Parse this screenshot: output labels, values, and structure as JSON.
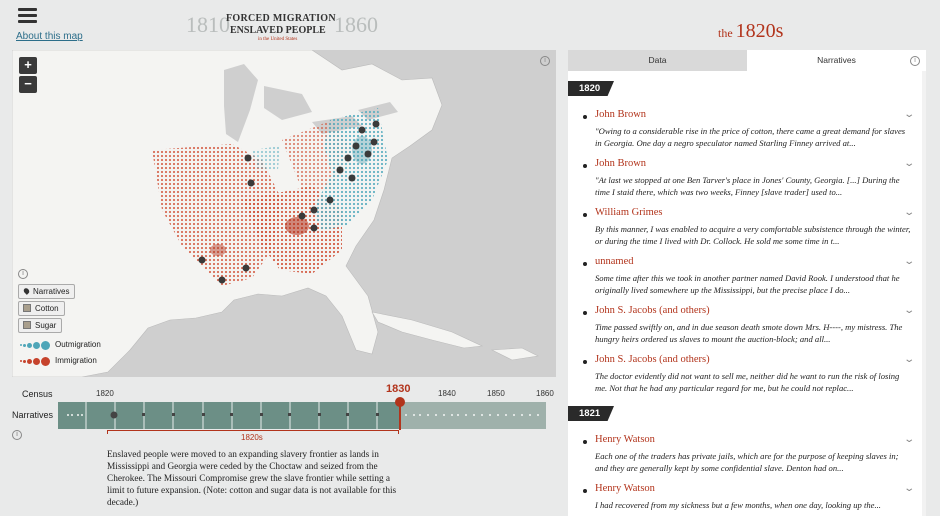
{
  "header": {
    "about_link": "About this map",
    "title_line1": "FORCED MIGRATION",
    "title_line2": "ENSLAVED PEOPLE",
    "title_sub": "in the United States",
    "year_start": "1810",
    "year_end": "1860"
  },
  "map": {
    "zoom_in": "+",
    "zoom_out": "−",
    "info": "i",
    "legend": {
      "narratives": "Narratives",
      "cotton": "Cotton",
      "sugar": "Sugar",
      "outmigration": "Outmigration",
      "immigration": "Immigration"
    },
    "colors": {
      "outmigration": "#4fa6b8",
      "immigration": "#c6432c",
      "land": "#f4f4f2",
      "water": "#cfcfcf"
    }
  },
  "timeline": {
    "census_label": "Census",
    "narratives_label": "Narratives",
    "ticks": [
      "1820",
      "1830",
      "1840",
      "1850",
      "1860"
    ],
    "current": "1830",
    "decade_label": "1820s",
    "info": "i",
    "description": "Enslaved people were moved to an expanding slavery frontier as lands in Mississippi and Georgia were ceded by the Choctaw and seized from the Cherokee. The Missouri Compromise grew the slave frontier while setting a limit to future expansion. (Note: cotton and sugar data is not available for this decade.)"
  },
  "panel": {
    "period_the": "the",
    "period_decade": "1820s",
    "tabs": {
      "data": "Data",
      "narratives": "Narratives"
    },
    "info": "i",
    "groups": [
      {
        "year": "1820",
        "items": [
          {
            "name": "John Brown",
            "excerpt": "\"Owing to a considerable rise in the price of cotton, there came a great demand for slaves in Georgia. One day a negro speculator named Starling Finney arrived at..."
          },
          {
            "name": "John Brown",
            "excerpt": "\"At last we stopped at one Ben Tarver's place in Jones' County, Georgia. [...] During the time I staid there, which was two weeks, Finney [slave trader] used to..."
          },
          {
            "name": "William Grimes",
            "excerpt": "By this manner, I was enabled to acquire a very comfortable subsistence through the winter, or during the time I lived with Dr. Collock. He sold me some time in t..."
          },
          {
            "name": "unnamed",
            "excerpt": "Some time after this we took in another partner named David Rook. I understood that he originally lived somewhere up the Mississippi, but the precise place I do..."
          },
          {
            "name": "John S. Jacobs (and others)",
            "excerpt": "Time passed swiftly on, and in due season death smote down Mrs. H----, my mistress. The hungry heirs ordered us slaves to mount the auction-block; and all..."
          },
          {
            "name": "John S. Jacobs (and others)",
            "excerpt": "The doctor evidently did not want to sell me, neither did he want to run the risk of losing me. Not that he had any particular regard for me, but he could not replac..."
          }
        ]
      },
      {
        "year": "1821",
        "items": [
          {
            "name": "Henry Watson",
            "excerpt": "Each one of the traders has private jails, which are for the purpose of keeping slaves in; and they are generally kept by some confidential slave. Denton had on..."
          },
          {
            "name": "Henry Watson",
            "excerpt": "I had recovered from my sickness but a few months, when one day, looking up the..."
          }
        ]
      }
    ]
  }
}
